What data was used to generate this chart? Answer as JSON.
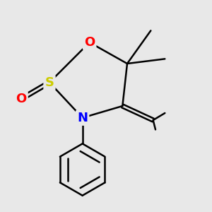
{
  "bg_color": "#e8e8e8",
  "O_color": "#ff0000",
  "S_color": "#cccc00",
  "N_color": "#0000ff",
  "bond_color": "#000000",
  "bond_width": 1.8,
  "font_size_atom": 13,
  "fig_width": 3.0,
  "fig_height": 3.0,
  "dpi": 100,
  "xlim": [
    0.1,
    0.9
  ],
  "ylim": [
    0.05,
    0.95
  ]
}
